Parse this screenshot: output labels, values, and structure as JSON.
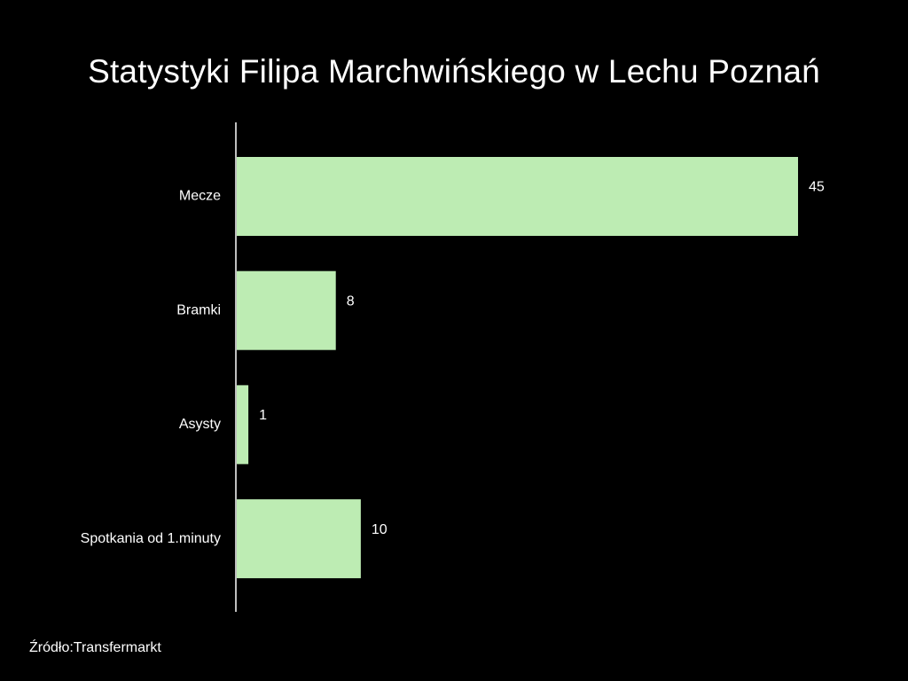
{
  "chart_data": {
    "type": "bar",
    "orientation": "horizontal",
    "title": "Statystyki Filipa Marchwińskiego w Lechu Poznań",
    "categories": [
      "Mecze",
      "Bramki",
      "Asysty",
      "Spotkania od 1.minuty"
    ],
    "values": [
      45,
      8,
      1,
      10
    ],
    "data_labels": [
      "45",
      "8",
      "1",
      "10"
    ],
    "xlim": [
      0,
      45
    ],
    "grid": false,
    "legend": "none",
    "colors": {
      "background": "#000000",
      "bar": "#bdecb3",
      "text": "#ffffff",
      "axis": "#bfbfbf"
    }
  },
  "footer": {
    "source": "Źródło:Transfermarkt"
  }
}
